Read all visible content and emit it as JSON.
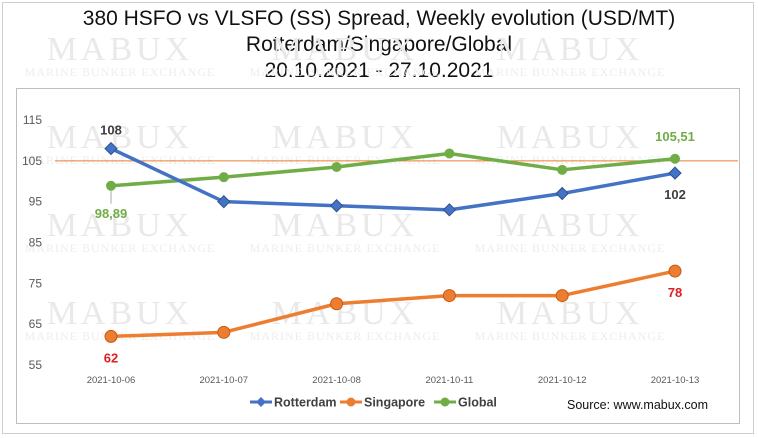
{
  "header": {
    "title_line1": "380 HSFO vs VLSFO (SS) Spread, Weekly evolution (USD/MT)",
    "title_line2": "Rotterdam/Singapore/Global",
    "title_line3": "20.10.2021 - 27.10.2021"
  },
  "watermark": {
    "brand": "MABUX",
    "tagline": "MARINE BUNKER EXCHANGE"
  },
  "source": "Source: www.mabux.com",
  "colors": {
    "rotterdam": "#4472C4",
    "singapore": "#ED7D31",
    "global": "#70AD47",
    "reference_line": "#ED7D31",
    "label_singapore": "#E02020",
    "label_global": "#70AD47"
  },
  "chart_data": {
    "type": "line",
    "categories": [
      "2021-10-06",
      "2021-10-07",
      "2021-10-08",
      "2021-10-11",
      "2021-10-12",
      "2021-10-13"
    ],
    "ylim": [
      55,
      115
    ],
    "yticks": [
      55,
      65,
      75,
      85,
      95,
      105,
      115
    ],
    "grid": "none",
    "legend_position": "bottom",
    "reference_line": 105,
    "series": [
      {
        "name": "Rotterdam",
        "values": [
          108,
          95,
          94,
          93,
          97,
          102
        ],
        "marker": "diamond",
        "labels": [
          {
            "index": 0,
            "text": "108"
          },
          {
            "index": 5,
            "text": "102"
          }
        ]
      },
      {
        "name": "Singapore",
        "values": [
          62,
          63,
          70,
          72,
          72,
          78
        ],
        "marker": "circle",
        "labels": [
          {
            "index": 0,
            "text": "62"
          },
          {
            "index": 5,
            "text": "78"
          }
        ]
      },
      {
        "name": "Global",
        "values": [
          98.89,
          101,
          103.5,
          106.8,
          102.8,
          105.51
        ],
        "marker": "circle",
        "labels": [
          {
            "index": 0,
            "text": "98,89"
          },
          {
            "index": 5,
            "text": "105,51"
          }
        ]
      }
    ]
  }
}
